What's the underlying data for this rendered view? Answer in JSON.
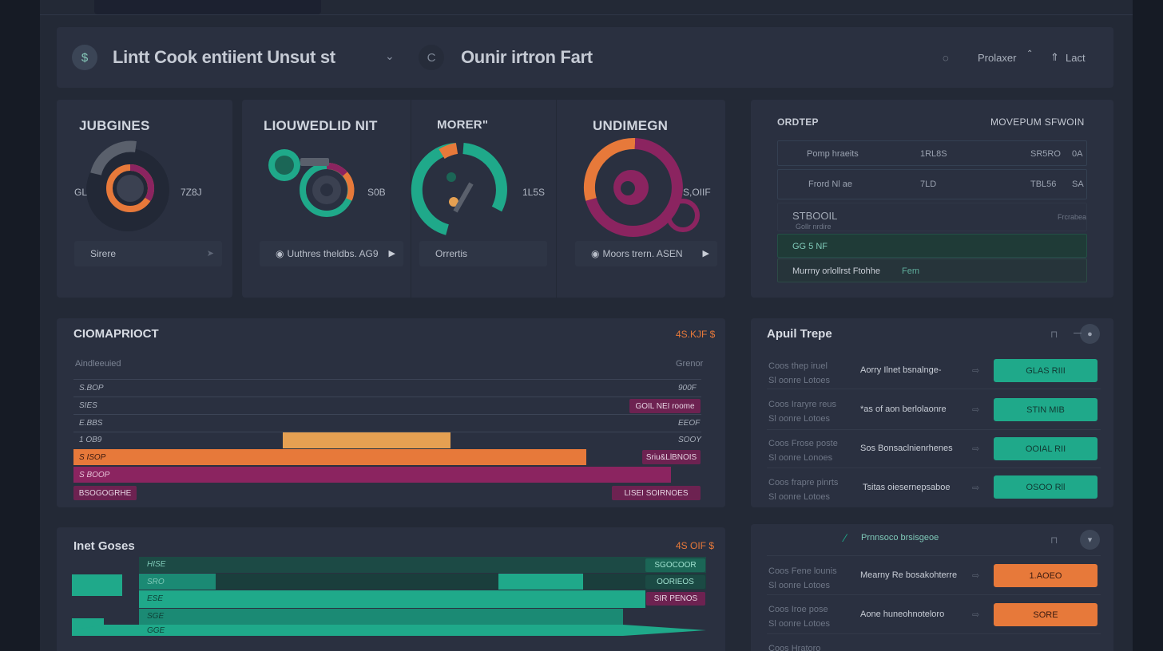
{
  "colors": {
    "bg": "#161b25",
    "panel": "#2a3040",
    "teal": "#1fa98a",
    "orange": "#e7793a",
    "magenta": "#8b2460",
    "amber": "#e5a052"
  },
  "header": {
    "app_title": "Lintt Cook entiient Unsut st",
    "section_title": "Ounir irtron Fart",
    "profile_label": "Prolaxer",
    "last_label": "Lact",
    "icons": [
      "app-logo-icon",
      "chevron-down-icon",
      "c-icon",
      "bell-icon",
      "user-icon"
    ]
  },
  "gauges": [
    {
      "title": "JUBGINES",
      "left_value": "GL",
      "right_value": "7Z8J",
      "footer": "Sirere"
    },
    {
      "title": "LIOUWEDLID NIT",
      "left_value": "",
      "right_value": "S0B",
      "footer": "Uuthres theldbs. AG9"
    },
    {
      "title": "MORER\"",
      "left_value": "",
      "right_value": "1L5S",
      "footer": "Orrertis"
    },
    {
      "title": "UNDIMEGN",
      "left_value": "",
      "right_value": "S,OIIF",
      "footer": "Moors trern. ASEN"
    }
  ],
  "orders": {
    "title": "ORDTEP",
    "right_title": "MOVEPUM SFWOIN",
    "rows": [
      {
        "name": "Pomp hraeits",
        "qty": "1RL8S",
        "value": "SR5RO",
        "flag": "0A"
      },
      {
        "name": "Frord Nl ae",
        "qty": "7LD",
        "value": "TBL56",
        "flag": "SA"
      },
      {
        "name": "STBOOIL",
        "sub": "Gollr nrdire",
        "qty": "",
        "value": "",
        "flag": "Frcrabea"
      },
      {
        "name": "GG 5 NF",
        "qty": "",
        "value": "",
        "flag": ""
      },
      {
        "name": "Murrny orlollrst Ftohhe",
        "qty": "Fem",
        "value": "",
        "flag": ""
      }
    ]
  },
  "comparison": {
    "title": "CIOMAPRIOCT",
    "value": "4S.KJF $",
    "col_left": "Aindleeuied",
    "col_right": "Grenor",
    "rows": [
      {
        "label": "S.BOP",
        "right": "900F"
      },
      {
        "label": "SIES",
        "right": "GOIL NEI roome"
      },
      {
        "label": "E.BBS",
        "right": "EEOF"
      },
      {
        "label": "1 OB9",
        "right": "SOOY"
      },
      {
        "label": "S ISOP",
        "right": "Sriu&LlBNOIS"
      },
      {
        "label": "S BOOP",
        "right": ""
      },
      {
        "label": "BSOGOGRHE",
        "right": "LISEI SOIRNOES"
      }
    ]
  },
  "apuil_trepe": {
    "title": "Apuil Trepe",
    "rows": [
      {
        "left1": "Coos thep iruel",
        "left2": "Sl oonre Lotoes",
        "mid": "Aorry Ilnet bsnalnge-",
        "btn": "GLAS RIII"
      },
      {
        "left1": "Coos Iraryre reus",
        "left2": "Sl oonre Lotoes",
        "mid": "*as of aon berlolaonre",
        "btn": "STIN MIB"
      },
      {
        "left1": "Coos Frose poste",
        "left2": "Sl oonre Lonoes",
        "mid": "Sos Bonsaclnienrhenes",
        "btn": "OOIAL RII"
      },
      {
        "left1": "Coos frapre pinrts",
        "left2": "Sl oonre Lotoes",
        "mid": "Tsitas oiesernepsaboe",
        "btn": "OSOO Rll"
      }
    ]
  },
  "inet_goses": {
    "title": "Inet Goses",
    "value": "4S OIF $",
    "rows": [
      {
        "label": "HISE",
        "chip": "SGOCOOR"
      },
      {
        "label": "SRO",
        "chip": "OORIEOS"
      },
      {
        "label": "ESE",
        "chip": "SIR PENOS"
      },
      {
        "label": "SGE",
        "chip": ""
      },
      {
        "label": "GGE",
        "chip": ""
      }
    ]
  },
  "lower_right": {
    "title": "Prnnsoco brsisgeoe",
    "rows": [
      {
        "left1": "Coos Fene lounis",
        "left2": "Sl oonre Lotoes",
        "mid": "Mearny Re bosakohterre",
        "btn": "1.AOEO"
      },
      {
        "left1": "Coos Iroe pose",
        "left2": "Sl oonre Lotoes",
        "mid": "Aone huneohnoteloro",
        "btn": "SORE"
      },
      {
        "left1": "Coos Hratoro",
        "left2": "",
        "mid": "",
        "btn": ""
      }
    ]
  }
}
